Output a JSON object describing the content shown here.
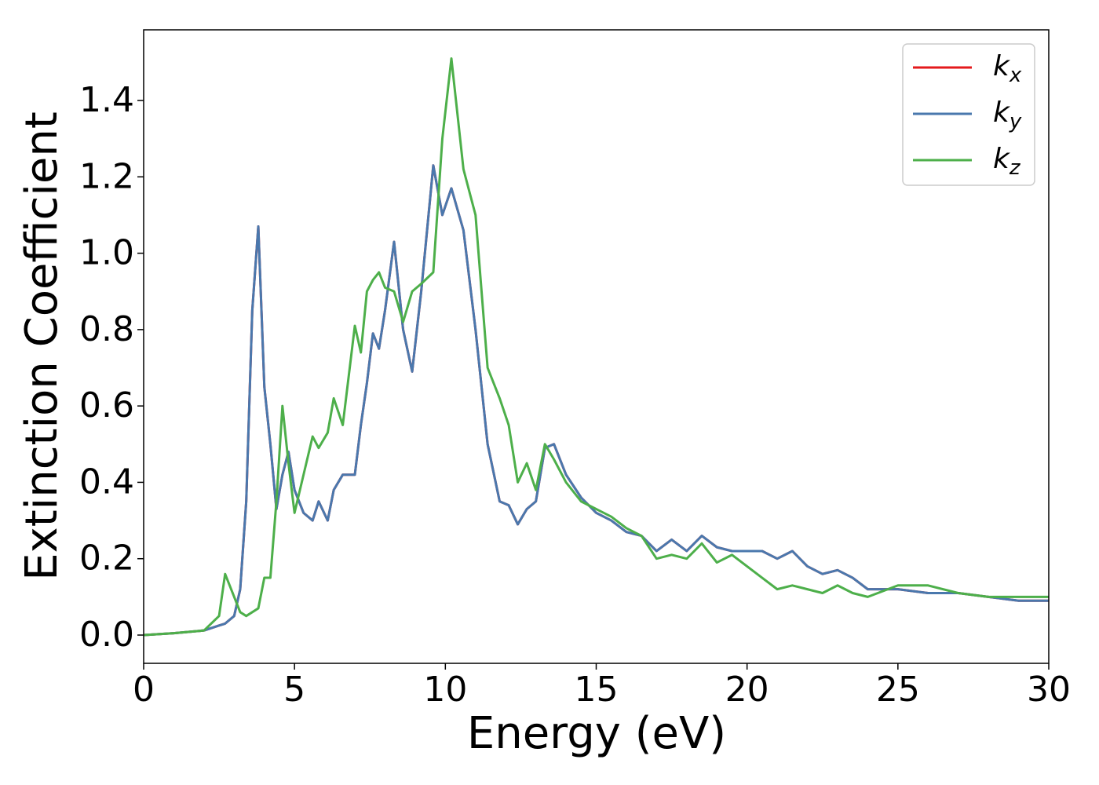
{
  "chart_data": {
    "type": "line",
    "xlabel": "Energy (eV)",
    "ylabel": "Extinction Coefficient",
    "xlim": [
      0,
      30
    ],
    "ylim": [
      -0.074,
      1.585
    ],
    "xticks": [
      0,
      5,
      10,
      15,
      20,
      25,
      30
    ],
    "yticks": [
      {
        "value": 0,
        "label": "0.0"
      },
      0.2,
      0.4,
      0.6,
      0.8,
      {
        "value": 1,
        "label": "1.0"
      },
      1.2,
      1.4
    ],
    "grid": false,
    "legend": "upper right",
    "x": [
      0,
      1,
      2,
      2.5,
      2.7,
      3,
      3.2,
      3.4,
      3.6,
      3.8,
      4.0,
      4.2,
      4.4,
      4.6,
      4.8,
      5.0,
      5.3,
      5.6,
      5.8,
      6.1,
      6.3,
      6.6,
      7.0,
      7.2,
      7.4,
      7.6,
      7.8,
      8.0,
      8.3,
      8.6,
      8.9,
      9.2,
      9.6,
      9.9,
      10.2,
      10.6,
      11.0,
      11.4,
      11.8,
      12.1,
      12.4,
      12.7,
      13.0,
      13.3,
      13.6,
      14.0,
      14.5,
      15,
      15.5,
      16,
      16.5,
      17,
      17.5,
      18,
      18.5,
      19,
      19.5,
      20,
      20.5,
      21,
      21.5,
      22,
      22.5,
      23,
      23.5,
      24,
      25,
      26,
      27,
      28,
      29,
      30
    ],
    "series": [
      {
        "name": "kx",
        "color": "#e41a1c",
        "values": [
          0,
          0.005,
          0.012,
          0.025,
          0.03,
          0.05,
          0.12,
          0.35,
          0.85,
          1.07,
          0.65,
          0.5,
          0.33,
          0.42,
          0.48,
          0.38,
          0.32,
          0.3,
          0.35,
          0.3,
          0.38,
          0.42,
          0.42,
          0.55,
          0.66,
          0.79,
          0.75,
          0.85,
          1.03,
          0.8,
          0.69,
          0.9,
          1.23,
          1.1,
          1.17,
          1.06,
          0.8,
          0.5,
          0.35,
          0.34,
          0.29,
          0.33,
          0.35,
          0.49,
          0.5,
          0.42,
          0.36,
          0.32,
          0.3,
          0.27,
          0.26,
          0.22,
          0.25,
          0.22,
          0.26,
          0.23,
          0.22,
          0.22,
          0.22,
          0.2,
          0.22,
          0.18,
          0.16,
          0.17,
          0.15,
          0.12,
          0.12,
          0.11,
          0.11,
          0.1,
          0.09,
          0.09
        ]
      },
      {
        "name": "ky",
        "color": "#4a78ad",
        "values": [
          0,
          0.005,
          0.012,
          0.025,
          0.03,
          0.05,
          0.12,
          0.35,
          0.85,
          1.07,
          0.65,
          0.5,
          0.33,
          0.42,
          0.48,
          0.38,
          0.32,
          0.3,
          0.35,
          0.3,
          0.38,
          0.42,
          0.42,
          0.55,
          0.66,
          0.79,
          0.75,
          0.85,
          1.03,
          0.8,
          0.69,
          0.9,
          1.23,
          1.1,
          1.17,
          1.06,
          0.8,
          0.5,
          0.35,
          0.34,
          0.29,
          0.33,
          0.35,
          0.49,
          0.5,
          0.42,
          0.36,
          0.32,
          0.3,
          0.27,
          0.26,
          0.22,
          0.25,
          0.22,
          0.26,
          0.23,
          0.22,
          0.22,
          0.22,
          0.2,
          0.22,
          0.18,
          0.16,
          0.17,
          0.15,
          0.12,
          0.12,
          0.11,
          0.11,
          0.1,
          0.09,
          0.09
        ]
      },
      {
        "name": "kz",
        "color": "#4daf4a",
        "values": [
          0,
          0.005,
          0.012,
          0.05,
          0.16,
          0.1,
          0.06,
          0.05,
          0.06,
          0.07,
          0.15,
          0.15,
          0.35,
          0.6,
          0.45,
          0.32,
          0.42,
          0.52,
          0.49,
          0.53,
          0.62,
          0.55,
          0.81,
          0.74,
          0.9,
          0.93,
          0.95,
          0.91,
          0.9,
          0.82,
          0.9,
          0.92,
          0.95,
          1.3,
          1.51,
          1.22,
          1.1,
          0.7,
          0.62,
          0.55,
          0.4,
          0.45,
          0.38,
          0.5,
          0.46,
          0.4,
          0.35,
          0.33,
          0.31,
          0.28,
          0.26,
          0.2,
          0.21,
          0.2,
          0.24,
          0.19,
          0.21,
          0.18,
          0.15,
          0.12,
          0.13,
          0.12,
          0.11,
          0.13,
          0.11,
          0.1,
          0.13,
          0.13,
          0.11,
          0.1,
          0.1,
          0.1
        ]
      }
    ]
  }
}
